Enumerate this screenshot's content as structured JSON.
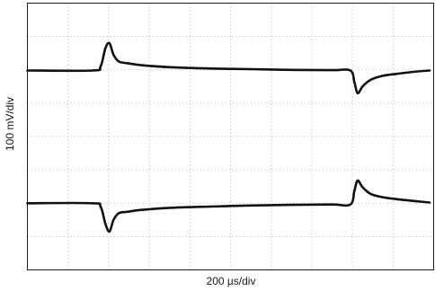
{
  "chart_data": {
    "type": "line",
    "title": "",
    "xlabel": "200 µs/div",
    "ylabel": "100 mV/div",
    "grid": true,
    "grid_divisions": {
      "x": 10,
      "y": 8
    },
    "xlim": [
      0,
      10
    ],
    "ylim": [
      -4,
      4
    ],
    "x_unit": "div",
    "y_unit": "div",
    "trace_color": "#111111",
    "grid_color": "#bdbdbd",
    "series": [
      {
        "x": [
          0,
          1.6,
          1.8,
          1.92,
          2.02,
          2.12,
          2.25,
          2.45,
          2.8,
          3.5,
          4.5,
          5.5,
          6.5,
          7.5,
          7.95,
          8.05,
          8.13,
          8.25,
          8.45,
          8.75,
          9.1,
          9.5,
          9.9
        ],
        "values": [
          1.98,
          1.98,
          2.1,
          2.65,
          2.8,
          2.45,
          2.25,
          2.2,
          2.14,
          2.08,
          2.04,
          2.02,
          2.0,
          1.99,
          1.98,
          1.62,
          1.3,
          1.5,
          1.7,
          1.82,
          1.88,
          1.94,
          1.98
        ]
      },
      {
        "x": [
          0,
          1.6,
          1.8,
          1.92,
          2.02,
          2.12,
          2.25,
          2.45,
          2.8,
          3.5,
          4.5,
          5.5,
          6.5,
          7.5,
          7.95,
          8.05,
          8.13,
          8.25,
          8.45,
          8.75,
          9.1,
          9.5,
          9.9
        ],
        "values": [
          -2.0,
          -2.0,
          -2.1,
          -2.62,
          -2.85,
          -2.5,
          -2.3,
          -2.26,
          -2.2,
          -2.14,
          -2.1,
          -2.07,
          -2.05,
          -2.04,
          -2.04,
          -1.62,
          -1.32,
          -1.52,
          -1.72,
          -1.82,
          -1.88,
          -1.93,
          -1.98
        ]
      }
    ]
  }
}
